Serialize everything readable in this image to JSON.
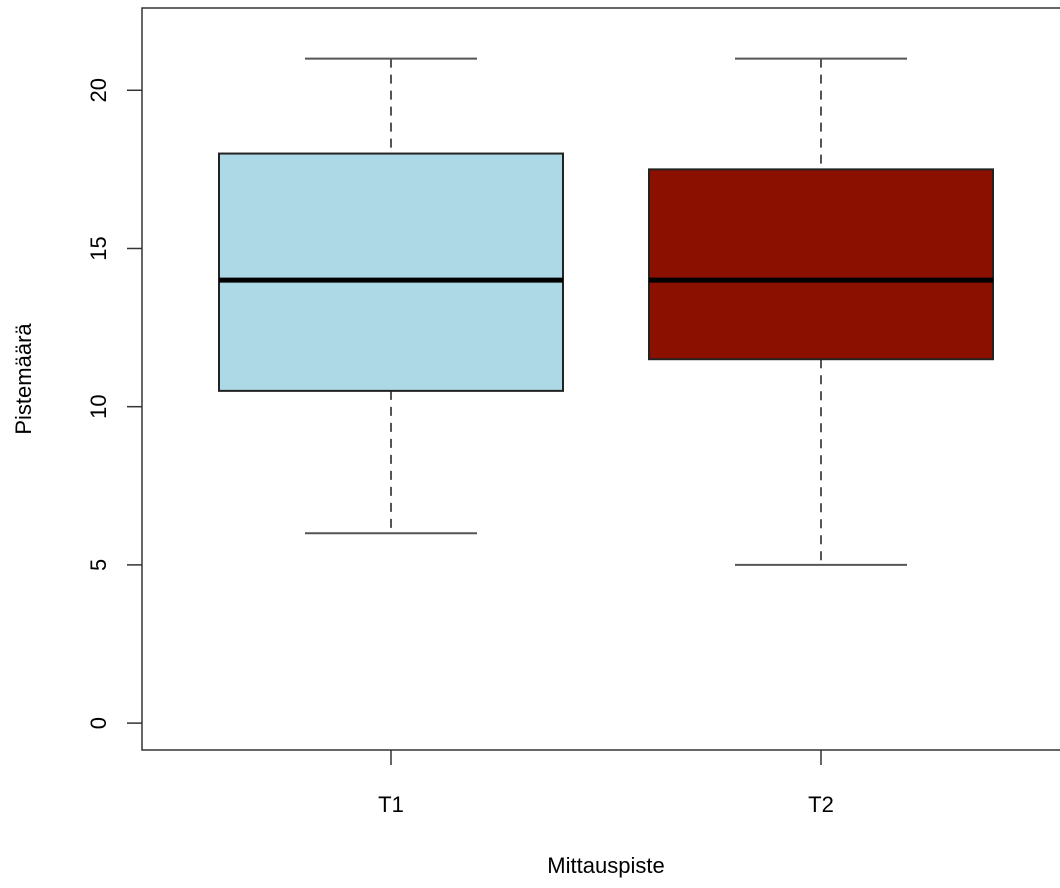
{
  "chart_data": {
    "type": "boxplot",
    "title": "",
    "xlabel": "Mittauspiste",
    "ylabel": "Pistemäärä",
    "categories": [
      "T1",
      "T2"
    ],
    "boxes": [
      {
        "category": "T1",
        "min": 6,
        "q1": 10.5,
        "median": 14,
        "q3": 18,
        "max": 21,
        "color": "#add8e6"
      },
      {
        "category": "T2",
        "min": 5,
        "q1": 11.5,
        "median": 14,
        "q3": 17.5,
        "max": 21,
        "color": "#8b1000"
      }
    ],
    "ylim": [
      -0.85,
      22.6
    ],
    "yticks": [
      "0",
      "5",
      "10",
      "15",
      "20"
    ],
    "grid": false,
    "legend": "none"
  }
}
